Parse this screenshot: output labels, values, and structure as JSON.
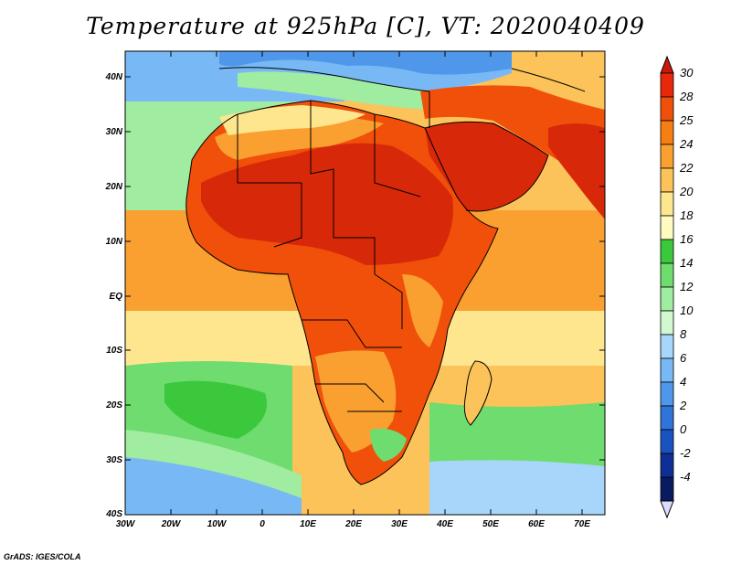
{
  "title": "Temperature at 925hPa [C], VT: 2020040409",
  "credit": "GrADS: IGES/COLA",
  "lat_labels": [
    "40N",
    "30N",
    "20N",
    "10N",
    "EQ",
    "10S",
    "20S",
    "30S",
    "40S"
  ],
  "lon_labels": [
    "30W",
    "20W",
    "10W",
    "0",
    "10E",
    "20E",
    "30E",
    "40E",
    "50E",
    "60E",
    "70E"
  ],
  "colorbar": {
    "labels": [
      "30",
      "28",
      "25",
      "24",
      "22",
      "20",
      "18",
      "16",
      "14",
      "12",
      "10",
      "8",
      "6",
      "4",
      "2",
      "0",
      "-2",
      "-4"
    ],
    "colors": [
      "#e8280a",
      "#f0500a",
      "#f57f10",
      "#f9a030",
      "#fbc35a",
      "#fde68e",
      "#fffbc0",
      "#3cc83c",
      "#6edc6e",
      "#a0eca0",
      "#d2f8d2",
      "#a8d6fa",
      "#78b9f5",
      "#4f97eb",
      "#2f74d8",
      "#1a52c0",
      "#0f2f96",
      "#0a1a60"
    ],
    "over_color": "#c81a0a",
    "under_color": "#dcdcff"
  },
  "colors": {
    "ocean_warm": "#fbc35a",
    "ocean_hot": "#f9a030",
    "ocean_mild": "#fde68e",
    "ocean_cool": "#6edc6e",
    "ocean_cold": "#78b9f5",
    "land_hot": "#d8280a",
    "land_warm": "#f0500a",
    "border": "#000000"
  }
}
